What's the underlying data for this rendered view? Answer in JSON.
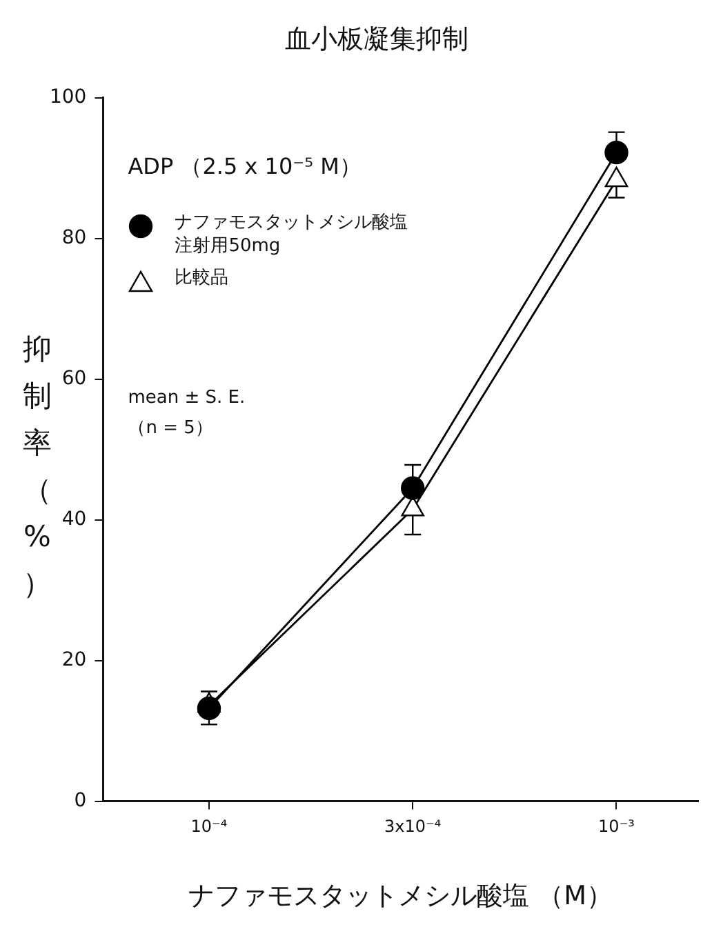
{
  "chart_data": {
    "type": "line",
    "title": "血小板凝集抑制",
    "xlabel": "ナファモスタットメシル酸塩 （M）",
    "ylabel": "抑制率（%）",
    "categories": [
      "10⁻⁴",
      "3x10⁻⁴",
      "10⁻³"
    ],
    "series": [
      {
        "name": "ナファモスタットメシル酸塩注射用50mg",
        "color": "#000000",
        "marker": "circle",
        "values": [
          13.2,
          44.5,
          92.2
        ],
        "errors": [
          [
            10.9,
            15.6
          ],
          [
            44.5,
            47.8
          ],
          [
            92.2,
            95.1
          ]
        ]
      },
      {
        "name": "比較品",
        "color": "#000000",
        "marker": "triangle",
        "values": [
          13.6,
          41.5,
          88.3
        ],
        "errors": [
          null,
          [
            37.9,
            41.5
          ],
          [
            85.8,
            88.3
          ]
        ]
      }
    ],
    "ylim": [
      0,
      100
    ],
    "yticks": [
      0,
      20,
      40,
      60,
      80,
      100
    ],
    "legend": "top left",
    "line_style": "solid",
    "annotations": [
      "ADP （2.5 x 10⁻⁵ M）",
      "mean ± S. E.",
      "（n = 5）"
    ]
  }
}
